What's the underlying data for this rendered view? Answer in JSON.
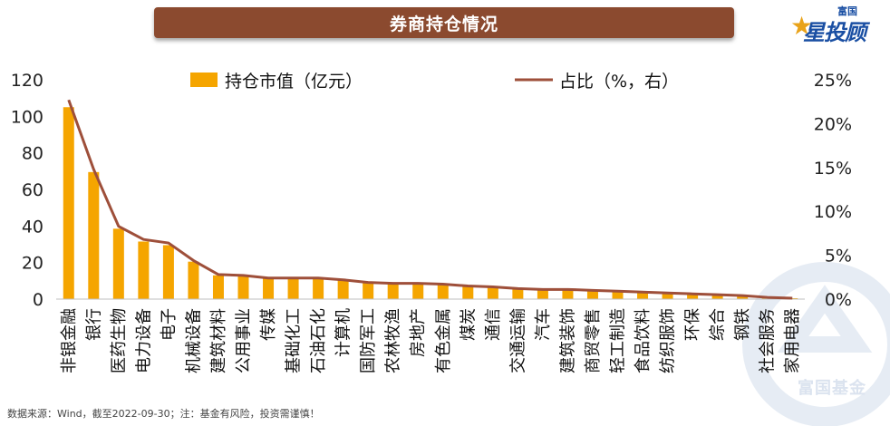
{
  "header": {
    "title": "券商持仓情况"
  },
  "logo": {
    "small_text": "富国",
    "main_text": "星投顾"
  },
  "watermark": {
    "text": "富国基金"
  },
  "footer": {
    "note": "数据来源：Wind，截至2022-09-30；注：基金有风险，投资需谨慎！"
  },
  "colors": {
    "bar": "#f5a500",
    "line": "#9e4f3a",
    "title_bg": "#8b4a2f",
    "logo": "#1a4fa3"
  },
  "chart_data": {
    "type": "bar+line",
    "title": "券商持仓情况",
    "categories": [
      "非银金融",
      "银行",
      "医药生物",
      "电力设备",
      "电子",
      "机械设备",
      "建筑材料",
      "公用事业",
      "传媒",
      "基础化工",
      "石油石化",
      "计算机",
      "国防军工",
      "农林牧渔",
      "房地产",
      "有色金属",
      "煤炭",
      "通信",
      "交通运输",
      "汽车",
      "建筑装饰",
      "商贸零售",
      "轻工制造",
      "食品饮料",
      "纺织服饰",
      "环保",
      "综合",
      "钢铁",
      "社会服务",
      "家用电器"
    ],
    "series": [
      {
        "name": "持仓市值（亿元）",
        "type": "bar",
        "axis": "left",
        "values": [
          105,
          69.5,
          38.5,
          31.5,
          29.5,
          20.5,
          13,
          12.5,
          11.5,
          11.5,
          11.5,
          10.5,
          9.5,
          9,
          9,
          8.5,
          7.5,
          7,
          6,
          5.5,
          5.5,
          5,
          4.5,
          4,
          3.5,
          3,
          2.5,
          2,
          1,
          0.5
        ]
      },
      {
        "name": "占比（%，右）",
        "type": "line",
        "axis": "right",
        "values": [
          22.7,
          14.8,
          8.3,
          6.8,
          6.4,
          4.4,
          2.8,
          2.7,
          2.4,
          2.4,
          2.4,
          2.2,
          1.9,
          1.8,
          1.8,
          1.7,
          1.5,
          1.4,
          1.2,
          1.1,
          1.1,
          1.0,
          0.9,
          0.8,
          0.7,
          0.6,
          0.5,
          0.4,
          0.2,
          0.1
        ]
      }
    ],
    "y_left": {
      "min": 0,
      "max": 120,
      "ticks": [
        "0",
        "20",
        "40",
        "60",
        "80",
        "100",
        "120"
      ]
    },
    "y_right": {
      "min": 0,
      "max": 25,
      "ticks": [
        "0%",
        "5%",
        "10%",
        "15%",
        "20%",
        "25%"
      ]
    },
    "legend": {
      "position": "top",
      "bar_label": "持仓市值（亿元）",
      "line_label": "占比（%，右）"
    }
  }
}
